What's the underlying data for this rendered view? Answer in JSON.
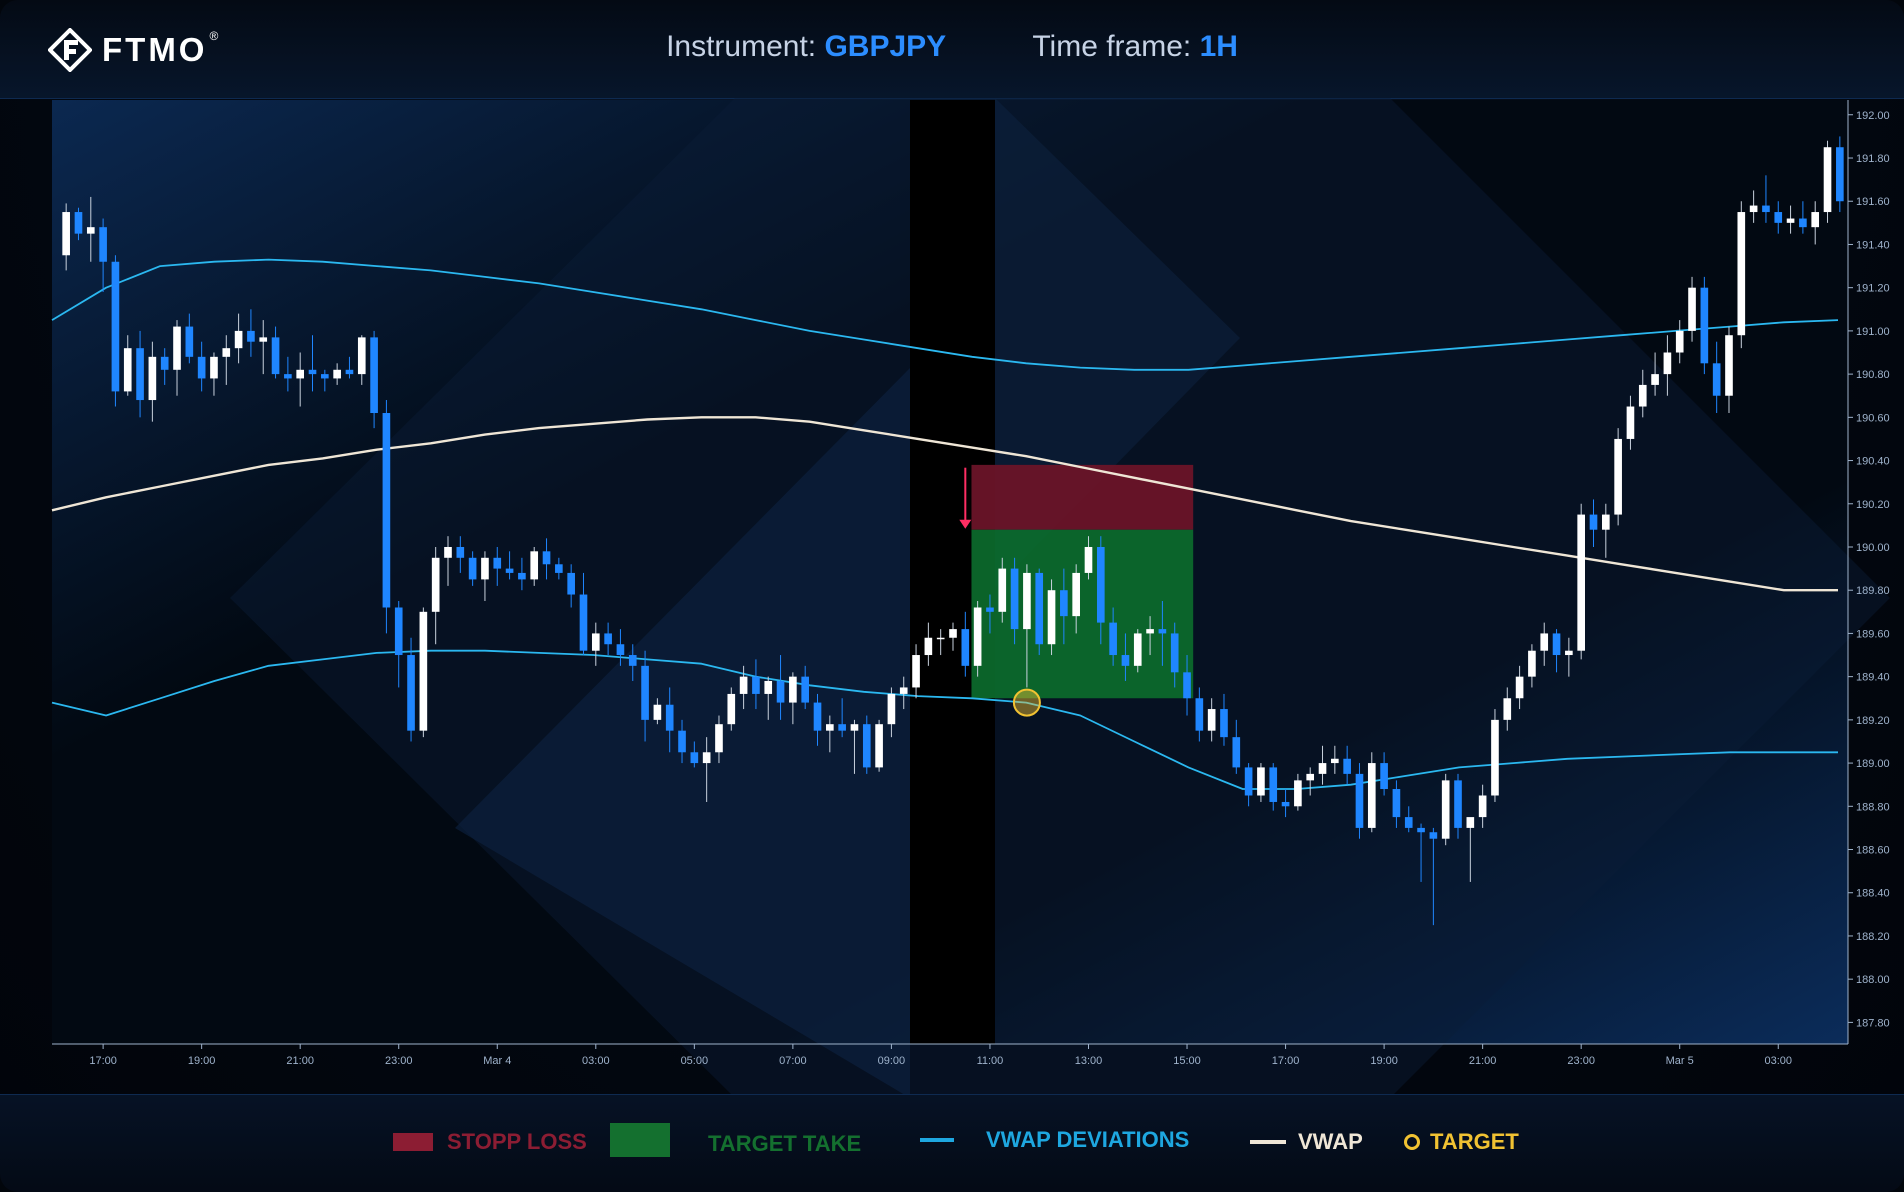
{
  "header": {
    "logo_text": "FTMO",
    "logo_reg": "®",
    "instrument_label": "Instrument:",
    "instrument_value": "GBPJPY",
    "timeframe_label": "Time frame:",
    "timeframe_value": "1H"
  },
  "legend": {
    "stop_loss": "STOPP LOSS",
    "target_take": "TARGET TAKE",
    "vwap_deviations": "VWAP DEVIATIONS",
    "vwap": "VWAP",
    "target": "TARGET"
  },
  "colors": {
    "bull": "#ffffff",
    "bear": "#1f86ff",
    "vwap": "#efe6d6",
    "deviation": "#2bb8f0",
    "stop_zone": "#6a1428",
    "target_zone": "#0c6b2c",
    "target_marker": "#f1c232",
    "entry_arrow": "#ff2e63",
    "legend_stop": "#8c1d33",
    "legend_target_take": "#14702f",
    "legend_deviation": "#1ea7e0"
  },
  "chart_data": {
    "type": "candlestick",
    "instrument": "GBPJPY",
    "timeframe": "1H",
    "ylim": [
      187.7,
      192.05
    ],
    "y_ticks": [
      "192.00",
      "191.80",
      "191.60",
      "191.40",
      "191.20",
      "191.00",
      "190.80",
      "190.60",
      "190.40",
      "190.20",
      "190.00",
      "189.80",
      "189.60",
      "189.40",
      "189.20",
      "189.00",
      "188.80",
      "188.60",
      "188.40",
      "188.20",
      "188.00",
      "187.80"
    ],
    "x_ticks": [
      {
        "label": "17:00",
        "index": 3
      },
      {
        "label": "19:00",
        "index": 11
      },
      {
        "label": "21:00",
        "index": 19
      },
      {
        "label": "23:00",
        "index": 27
      },
      {
        "label": "Mar 4",
        "index": 35
      },
      {
        "label": "03:00",
        "index": 43
      },
      {
        "label": "05:00",
        "index": 51
      },
      {
        "label": "07:00",
        "index": 59
      },
      {
        "label": "09:00",
        "index": 67
      },
      {
        "label": "11:00",
        "index": 75
      },
      {
        "label": "13:00",
        "index": 83
      },
      {
        "label": "15:00",
        "index": 91
      },
      {
        "label": "17:00",
        "index": 99
      },
      {
        "label": "19:00",
        "index": 107
      },
      {
        "label": "21:00",
        "index": 115
      },
      {
        "label": "23:00",
        "index": 123
      },
      {
        "label": "Mar 5",
        "index": 131
      },
      {
        "label": "03:00",
        "index": 139
      }
    ],
    "ohlc": [
      [
        191.35,
        191.59,
        191.28,
        191.55
      ],
      [
        191.55,
        191.57,
        191.42,
        191.45
      ],
      [
        191.45,
        191.62,
        191.32,
        191.48
      ],
      [
        191.48,
        191.52,
        191.18,
        191.32
      ],
      [
        191.32,
        191.35,
        190.65,
        190.72
      ],
      [
        190.72,
        190.98,
        190.7,
        190.92
      ],
      [
        190.92,
        191.0,
        190.6,
        190.68
      ],
      [
        190.68,
        190.95,
        190.58,
        190.88
      ],
      [
        190.88,
        190.92,
        190.75,
        190.82
      ],
      [
        190.82,
        191.05,
        190.7,
        191.02
      ],
      [
        191.02,
        191.08,
        190.85,
        190.88
      ],
      [
        190.88,
        190.95,
        190.72,
        190.78
      ],
      [
        190.78,
        190.9,
        190.7,
        190.88
      ],
      [
        190.88,
        190.98,
        190.75,
        190.92
      ],
      [
        190.92,
        191.08,
        190.85,
        191.0
      ],
      [
        191.0,
        191.1,
        190.88,
        190.95
      ],
      [
        190.95,
        191.05,
        190.8,
        190.97
      ],
      [
        190.97,
        191.02,
        190.78,
        190.8
      ],
      [
        190.8,
        190.88,
        190.72,
        190.78
      ],
      [
        190.78,
        190.9,
        190.65,
        190.82
      ],
      [
        190.82,
        190.98,
        190.72,
        190.8
      ],
      [
        190.8,
        190.82,
        190.72,
        190.78
      ],
      [
        190.78,
        190.85,
        190.75,
        190.82
      ],
      [
        190.82,
        190.88,
        190.78,
        190.8
      ],
      [
        190.8,
        190.98,
        190.75,
        190.97
      ],
      [
        190.97,
        191.0,
        190.55,
        190.62
      ],
      [
        190.62,
        190.68,
        189.6,
        189.72
      ],
      [
        189.72,
        189.75,
        189.35,
        189.5
      ],
      [
        189.5,
        189.58,
        189.1,
        189.15
      ],
      [
        189.15,
        189.72,
        189.12,
        189.7
      ],
      [
        189.7,
        190.0,
        189.55,
        189.95
      ],
      [
        189.95,
        190.05,
        189.82,
        190.0
      ],
      [
        190.0,
        190.05,
        189.88,
        189.95
      ],
      [
        189.95,
        189.98,
        189.82,
        189.85
      ],
      [
        189.85,
        189.98,
        189.75,
        189.95
      ],
      [
        189.95,
        190.0,
        189.82,
        189.9
      ],
      [
        189.9,
        189.98,
        189.85,
        189.88
      ],
      [
        189.88,
        189.95,
        189.8,
        189.85
      ],
      [
        189.85,
        190.0,
        189.82,
        189.98
      ],
      [
        189.98,
        190.04,
        189.85,
        189.92
      ],
      [
        189.92,
        189.95,
        189.85,
        189.88
      ],
      [
        189.88,
        189.92,
        189.72,
        189.78
      ],
      [
        189.78,
        189.88,
        189.5,
        189.52
      ],
      [
        189.52,
        189.65,
        189.45,
        189.6
      ],
      [
        189.6,
        189.65,
        189.5,
        189.55
      ],
      [
        189.55,
        189.62,
        189.45,
        189.5
      ],
      [
        189.5,
        189.55,
        189.38,
        189.45
      ],
      [
        189.45,
        189.52,
        189.1,
        189.2
      ],
      [
        189.2,
        189.3,
        189.18,
        189.27
      ],
      [
        189.27,
        189.35,
        189.05,
        189.15
      ],
      [
        189.15,
        189.2,
        189.0,
        189.05
      ],
      [
        189.05,
        189.1,
        188.98,
        189.0
      ],
      [
        189.0,
        189.12,
        188.82,
        189.05
      ],
      [
        189.05,
        189.22,
        189.0,
        189.18
      ],
      [
        189.18,
        189.35,
        189.15,
        189.32
      ],
      [
        189.32,
        189.45,
        189.25,
        189.4
      ],
      [
        189.4,
        189.48,
        189.25,
        189.32
      ],
      [
        189.32,
        189.4,
        189.2,
        189.38
      ],
      [
        189.38,
        189.5,
        189.2,
        189.28
      ],
      [
        189.28,
        189.42,
        189.18,
        189.4
      ],
      [
        189.4,
        189.45,
        189.25,
        189.28
      ],
      [
        189.28,
        189.32,
        189.08,
        189.15
      ],
      [
        189.15,
        189.22,
        189.05,
        189.18
      ],
      [
        189.18,
        189.3,
        189.12,
        189.15
      ],
      [
        189.15,
        189.2,
        188.95,
        189.18
      ],
      [
        189.18,
        189.22,
        188.95,
        188.98
      ],
      [
        188.98,
        189.2,
        188.96,
        189.18
      ],
      [
        189.18,
        189.35,
        189.12,
        189.32
      ],
      [
        189.32,
        189.4,
        189.25,
        189.35
      ],
      [
        189.35,
        189.55,
        189.3,
        189.5
      ],
      [
        189.5,
        189.65,
        189.45,
        189.58
      ],
      [
        189.58,
        189.62,
        189.5,
        189.58
      ],
      [
        189.58,
        189.65,
        189.52,
        189.62
      ],
      [
        189.62,
        189.7,
        189.4,
        189.45
      ],
      [
        189.45,
        189.75,
        189.4,
        189.72
      ],
      [
        189.72,
        189.78,
        189.6,
        189.7
      ],
      [
        189.7,
        189.95,
        189.65,
        189.9
      ],
      [
        189.9,
        189.95,
        189.55,
        189.62
      ],
      [
        189.62,
        189.92,
        189.35,
        189.88
      ],
      [
        189.88,
        189.9,
        189.5,
        189.55
      ],
      [
        189.55,
        189.85,
        189.5,
        189.8
      ],
      [
        189.8,
        189.9,
        189.55,
        189.68
      ],
      [
        189.68,
        189.92,
        189.6,
        189.88
      ],
      [
        189.88,
        190.05,
        189.85,
        190.0
      ],
      [
        190.0,
        190.05,
        189.55,
        189.65
      ],
      [
        189.65,
        189.72,
        189.45,
        189.5
      ],
      [
        189.5,
        189.6,
        189.38,
        189.45
      ],
      [
        189.45,
        189.62,
        189.42,
        189.6
      ],
      [
        189.6,
        189.68,
        189.5,
        189.62
      ],
      [
        189.62,
        189.75,
        189.45,
        189.6
      ],
      [
        189.6,
        189.65,
        189.35,
        189.42
      ],
      [
        189.42,
        189.5,
        189.22,
        189.3
      ],
      [
        189.3,
        189.35,
        189.1,
        189.15
      ],
      [
        189.15,
        189.3,
        189.1,
        189.25
      ],
      [
        189.25,
        189.32,
        189.08,
        189.12
      ],
      [
        189.12,
        189.2,
        188.95,
        188.98
      ],
      [
        188.98,
        189.0,
        188.8,
        188.85
      ],
      [
        188.85,
        189.0,
        188.82,
        188.98
      ],
      [
        188.98,
        189.0,
        188.78,
        188.82
      ],
      [
        188.82,
        188.88,
        188.75,
        188.8
      ],
      [
        188.8,
        188.95,
        188.78,
        188.92
      ],
      [
        188.92,
        188.98,
        188.85,
        188.95
      ],
      [
        188.95,
        189.08,
        188.9,
        189.0
      ],
      [
        189.0,
        189.08,
        188.95,
        189.02
      ],
      [
        189.02,
        189.08,
        188.9,
        188.95
      ],
      [
        188.95,
        189.0,
        188.65,
        188.7
      ],
      [
        188.7,
        189.05,
        188.68,
        189.0
      ],
      [
        189.0,
        189.05,
        188.85,
        188.88
      ],
      [
        188.88,
        188.92,
        188.7,
        188.75
      ],
      [
        188.75,
        188.8,
        188.68,
        188.7
      ],
      [
        188.7,
        188.72,
        188.45,
        188.68
      ],
      [
        188.68,
        188.7,
        188.25,
        188.65
      ],
      [
        188.65,
        188.95,
        188.62,
        188.92
      ],
      [
        188.92,
        188.95,
        188.65,
        188.7
      ],
      [
        188.7,
        188.72,
        188.45,
        188.75
      ],
      [
        188.75,
        188.9,
        188.7,
        188.85
      ],
      [
        188.85,
        189.25,
        188.82,
        189.2
      ],
      [
        189.2,
        189.35,
        189.15,
        189.3
      ],
      [
        189.3,
        189.45,
        189.25,
        189.4
      ],
      [
        189.4,
        189.55,
        189.35,
        189.52
      ],
      [
        189.52,
        189.65,
        189.45,
        189.6
      ],
      [
        189.6,
        189.62,
        189.42,
        189.5
      ],
      [
        189.5,
        189.58,
        189.4,
        189.52
      ],
      [
        189.52,
        190.2,
        189.48,
        190.15
      ],
      [
        190.15,
        190.22,
        190.0,
        190.08
      ],
      [
        190.08,
        190.2,
        189.95,
        190.15
      ],
      [
        190.15,
        190.55,
        190.1,
        190.5
      ],
      [
        190.5,
        190.7,
        190.45,
        190.65
      ],
      [
        190.65,
        190.82,
        190.6,
        190.75
      ],
      [
        190.75,
        190.9,
        190.7,
        190.8
      ],
      [
        190.8,
        190.98,
        190.7,
        190.9
      ],
      [
        190.9,
        191.05,
        190.85,
        191.0
      ],
      [
        191.0,
        191.25,
        190.95,
        191.2
      ],
      [
        191.2,
        191.25,
        190.8,
        190.85
      ],
      [
        190.85,
        190.95,
        190.62,
        190.7
      ],
      [
        190.7,
        191.02,
        190.62,
        190.98
      ],
      [
        190.98,
        191.6,
        190.92,
        191.55
      ],
      [
        191.55,
        191.65,
        191.5,
        191.58
      ],
      [
        191.58,
        191.72,
        191.5,
        191.55
      ],
      [
        191.55,
        191.6,
        191.45,
        191.5
      ],
      [
        191.5,
        191.58,
        191.45,
        191.52
      ],
      [
        191.52,
        191.6,
        191.45,
        191.48
      ],
      [
        191.48,
        191.6,
        191.4,
        191.55
      ],
      [
        191.55,
        191.88,
        191.5,
        191.85
      ],
      [
        191.85,
        191.9,
        191.55,
        191.6
      ]
    ],
    "vwap": [
      190.17,
      190.23,
      190.28,
      190.33,
      190.38,
      190.41,
      190.45,
      190.48,
      190.52,
      190.55,
      190.57,
      190.59,
      190.6,
      190.6,
      190.58,
      190.54,
      190.5,
      190.46,
      190.42,
      190.37,
      190.32,
      190.27,
      190.22,
      190.17,
      190.12,
      190.08,
      190.04,
      190.0,
      189.96,
      189.92,
      189.88,
      189.84,
      189.8,
      189.8
    ],
    "vwap_upper": [
      191.05,
      191.2,
      191.3,
      191.32,
      191.33,
      191.32,
      191.3,
      191.28,
      191.25,
      191.22,
      191.18,
      191.14,
      191.1,
      191.05,
      191.0,
      190.96,
      190.92,
      190.88,
      190.85,
      190.83,
      190.82,
      190.82,
      190.84,
      190.86,
      190.88,
      190.9,
      190.92,
      190.94,
      190.96,
      190.98,
      191.0,
      191.02,
      191.04,
      191.05
    ],
    "vwap_lower": [
      189.28,
      189.22,
      189.3,
      189.38,
      189.45,
      189.48,
      189.51,
      189.52,
      189.52,
      189.51,
      189.5,
      189.48,
      189.46,
      189.4,
      189.36,
      189.33,
      189.31,
      189.3,
      189.28,
      189.22,
      189.1,
      188.98,
      188.88,
      188.88,
      188.9,
      188.94,
      188.98,
      189.0,
      189.02,
      189.03,
      189.04,
      189.05,
      189.05,
      189.05
    ],
    "stop_loss_zone": {
      "start_index": 74,
      "end_index": 92,
      "top": 190.38,
      "bottom": 190.08
    },
    "target_take_zone": {
      "start_index": 74,
      "end_index": 92,
      "top": 190.08,
      "bottom": 189.3
    },
    "entry": {
      "index": 73,
      "price": 190.08
    },
    "target_hit": {
      "index": 78,
      "price": 189.28
    }
  }
}
